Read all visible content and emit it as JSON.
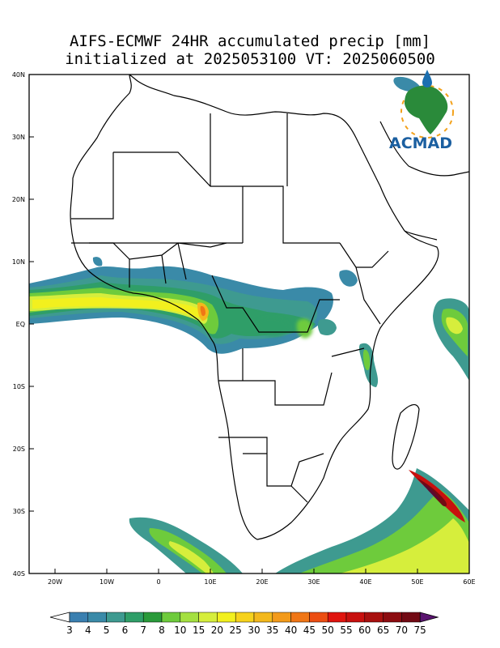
{
  "title": {
    "line1": "AIFS-ECMWF 24HR accumulated precip [mm]",
    "line2": "initialized at 2025053100 VT: 2025060500"
  },
  "lat_labels": [
    "40N",
    "30N",
    "20N",
    "10N",
    "EQ",
    "10S",
    "20S",
    "30S",
    "40S"
  ],
  "lon_labels": [
    "20W",
    "10W",
    "0",
    "10E",
    "20E",
    "30E",
    "40E",
    "50E",
    "60E"
  ],
  "colorbar": {
    "levels": [
      "3",
      "4",
      "5",
      "6",
      "7",
      "8",
      "10",
      "15",
      "20",
      "25",
      "30",
      "35",
      "40",
      "45",
      "50",
      "55",
      "60",
      "65",
      "70",
      "75"
    ],
    "colors": [
      "#3a7fb0",
      "#3a8aa8",
      "#3e9a90",
      "#2f9e68",
      "#2a9a3a",
      "#6ecb3c",
      "#a4e040",
      "#d6ee3c",
      "#f2f01e",
      "#f6d21c",
      "#f3b81c",
      "#f39a1a",
      "#f07616",
      "#ec4e12",
      "#e0140e",
      "#c8100e",
      "#a8100e",
      "#8c0c10",
      "#720a14",
      "#5c0a30",
      "#5a1470"
    ]
  },
  "logo": {
    "text": "ACMAD"
  },
  "colors": {
    "coast": "#000000",
    "background": "#ffffff",
    "frame": "#000000"
  }
}
